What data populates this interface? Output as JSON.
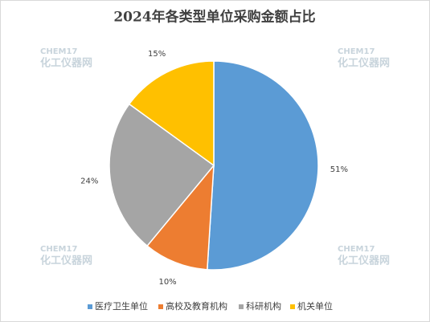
{
  "chart_data": {
    "type": "pie",
    "title": "2024年各类型单位采购金额占比",
    "categories": [
      "医疗卫生单位",
      "高校及教育机构",
      "科研机构",
      "机关单位"
    ],
    "values": [
      51,
      10,
      24,
      15
    ],
    "value_labels": [
      "51%",
      "10%",
      "24%",
      "15%"
    ],
    "colors": [
      "#5b9bd5",
      "#ed7d31",
      "#a5a5a5",
      "#ffc000"
    ],
    "legend": "bottom"
  },
  "watermark": [
    "CHEM17",
    "化工仪器网"
  ]
}
